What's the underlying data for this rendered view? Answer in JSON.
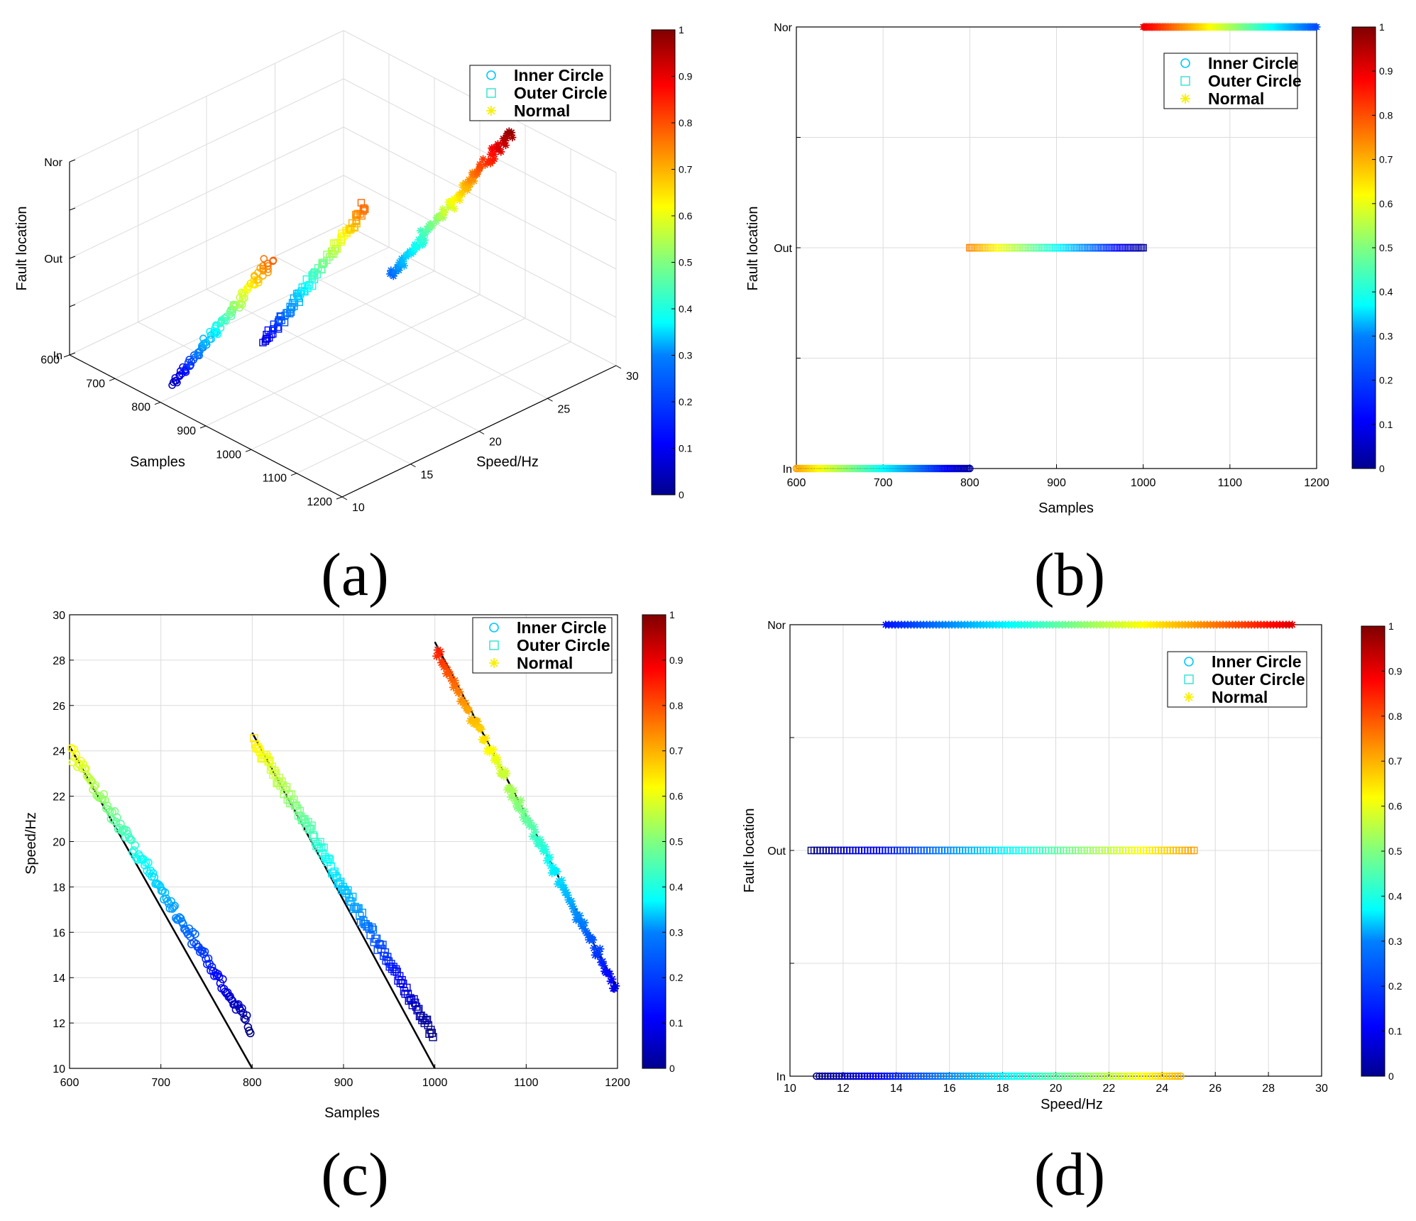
{
  "colormap": {
    "name": "jet",
    "stops": [
      "#00008f",
      "#0000ff",
      "#0080ff",
      "#00ffff",
      "#80ff80",
      "#ffff00",
      "#ff8000",
      "#ff0000",
      "#800000"
    ]
  },
  "legend": {
    "items": [
      {
        "label": "Inner Circle",
        "marker": "circle",
        "color": "#00c8ff"
      },
      {
        "label": "Outer Circle",
        "marker": "square",
        "color": "#30e0d0"
      },
      {
        "label": "Normal",
        "marker": "star",
        "color": "#f8f000"
      }
    ]
  },
  "panel_labels": {
    "a": "(a)",
    "b": "(b)",
    "c": "(c)",
    "d": "(d)"
  },
  "chart_data": [
    {
      "id": "a",
      "type": "scatter3d",
      "xlabel": "Samples",
      "ylabel": "Speed/Hz",
      "zlabel": "Fault location",
      "x_ticks": [
        "600",
        "700",
        "800",
        "900",
        "1000",
        "1100",
        "1200"
      ],
      "y_ticks": [
        "10",
        "15",
        "20",
        "25",
        "30"
      ],
      "z_ticks": [
        "In",
        "Out",
        "Nor"
      ],
      "xlim": [
        600,
        1200
      ],
      "ylim": [
        10,
        30
      ],
      "colorbar": {
        "range": [
          0,
          1
        ],
        "ticks": [
          "0",
          "0.1",
          "0.2",
          "0.3",
          "0.4",
          "0.5",
          "0.6",
          "0.7",
          "0.8",
          "0.9",
          "1"
        ]
      },
      "series": [
        {
          "name": "Inner Circle",
          "marker": "circle",
          "x_range": [
            600,
            800
          ],
          "y_range": [
            24,
            11.5
          ],
          "fault": "In"
        },
        {
          "name": "Outer Circle",
          "marker": "square",
          "x_range": [
            800,
            1000
          ],
          "y_range": [
            25,
            11
          ],
          "fault": "Out"
        },
        {
          "name": "Normal",
          "marker": "star",
          "x_range": [
            1000,
            1200
          ],
          "y_range": [
            28.5,
            13.5
          ],
          "fault": "Nor"
        }
      ]
    },
    {
      "id": "b",
      "type": "scatter",
      "xlabel": "Samples",
      "ylabel": "Fault location",
      "x_ticks": [
        "600",
        "700",
        "800",
        "900",
        "1000",
        "1100",
        "1200"
      ],
      "y_ticks": [
        "In",
        "Out",
        "Nor"
      ],
      "xlim": [
        600,
        1200
      ],
      "colorbar": {
        "range": [
          0,
          1
        ],
        "ticks": [
          "0",
          "0.1",
          "0.2",
          "0.3",
          "0.4",
          "0.5",
          "0.6",
          "0.7",
          "0.8",
          "0.9",
          "1"
        ]
      },
      "series": [
        {
          "name": "Inner Circle",
          "marker": "circle",
          "x_range": [
            600,
            800
          ],
          "level": "In"
        },
        {
          "name": "Outer Circle",
          "marker": "square",
          "x_range": [
            800,
            1000
          ],
          "level": "Out"
        },
        {
          "name": "Normal",
          "marker": "star",
          "x_range": [
            1000,
            1200
          ],
          "level": "Nor"
        }
      ]
    },
    {
      "id": "c",
      "type": "scatter",
      "xlabel": "Samples",
      "ylabel": "Speed/Hz",
      "x_ticks": [
        "600",
        "700",
        "800",
        "900",
        "1000",
        "1100",
        "1200"
      ],
      "y_ticks": [
        "10",
        "12",
        "14",
        "16",
        "18",
        "20",
        "22",
        "24",
        "26",
        "28",
        "30"
      ],
      "xlim": [
        600,
        1200
      ],
      "ylim": [
        10,
        30
      ],
      "colorbar": {
        "range": [
          0,
          1
        ],
        "ticks": [
          "0",
          "0.1",
          "0.2",
          "0.3",
          "0.4",
          "0.5",
          "0.6",
          "0.7",
          "0.8",
          "0.9",
          "1"
        ]
      },
      "series": [
        {
          "name": "Inner Circle",
          "marker": "circle",
          "x_range": [
            600,
            800
          ],
          "y_range": [
            24,
            11.8
          ],
          "trend": [
            [
              600,
              24.2
            ],
            [
              800,
              10
            ]
          ]
        },
        {
          "name": "Outer Circle",
          "marker": "square",
          "x_range": [
            800,
            1000
          ],
          "y_range": [
            24.5,
            11.5
          ],
          "trend": [
            [
              800,
              24.8
            ],
            [
              1000,
              10
            ]
          ]
        },
        {
          "name": "Normal",
          "marker": "star",
          "x_range": [
            1000,
            1200
          ],
          "y_range": [
            28.4,
            13.6
          ],
          "trend": [
            [
              1000,
              28.8
            ],
            [
              1200,
              13.5
            ]
          ]
        }
      ]
    },
    {
      "id": "d",
      "type": "scatter",
      "xlabel": "Speed/Hz",
      "ylabel": "Fault location",
      "x_ticks": [
        "10",
        "12",
        "14",
        "16",
        "18",
        "20",
        "22",
        "24",
        "26",
        "28",
        "30"
      ],
      "y_ticks": [
        "In",
        "Out",
        "Nor"
      ],
      "xlim": [
        10,
        30
      ],
      "colorbar": {
        "range": [
          0,
          1
        ],
        "ticks": [
          "0",
          "0.1",
          "0.2",
          "0.3",
          "0.4",
          "0.5",
          "0.6",
          "0.7",
          "0.8",
          "0.9",
          "1"
        ]
      },
      "series": [
        {
          "name": "Inner Circle",
          "marker": "circle",
          "x_range": [
            11,
            24.7
          ],
          "level": "In"
        },
        {
          "name": "Outer Circle",
          "marker": "square",
          "x_range": [
            10.8,
            25.2
          ],
          "level": "Out"
        },
        {
          "name": "Normal",
          "marker": "star",
          "x_range": [
            13.6,
            28.9
          ],
          "level": "Nor"
        }
      ]
    }
  ]
}
